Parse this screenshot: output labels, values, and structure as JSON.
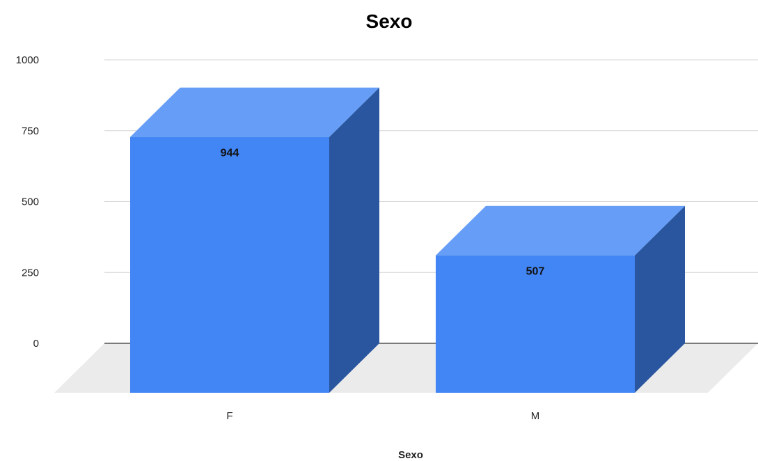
{
  "chart_data": {
    "type": "bar",
    "style": "3d",
    "title": "Sexo",
    "xlabel": "Sexo",
    "ylabel": "",
    "categories": [
      "F",
      "M"
    ],
    "values": [
      944,
      507
    ],
    "data_labels": [
      "944",
      "507"
    ],
    "y_ticks": [
      "0",
      "250",
      "500",
      "750",
      "1000"
    ],
    "ylim": [
      0,
      1000
    ],
    "grid": true,
    "legend": "none",
    "colors": {
      "bar_front": "#4285f4",
      "bar_top": "#669df6",
      "bar_side": "#2a56a0",
      "floor": "#ebebeb",
      "gridline": "#d4d4d4",
      "baseline": "#333333"
    }
  }
}
